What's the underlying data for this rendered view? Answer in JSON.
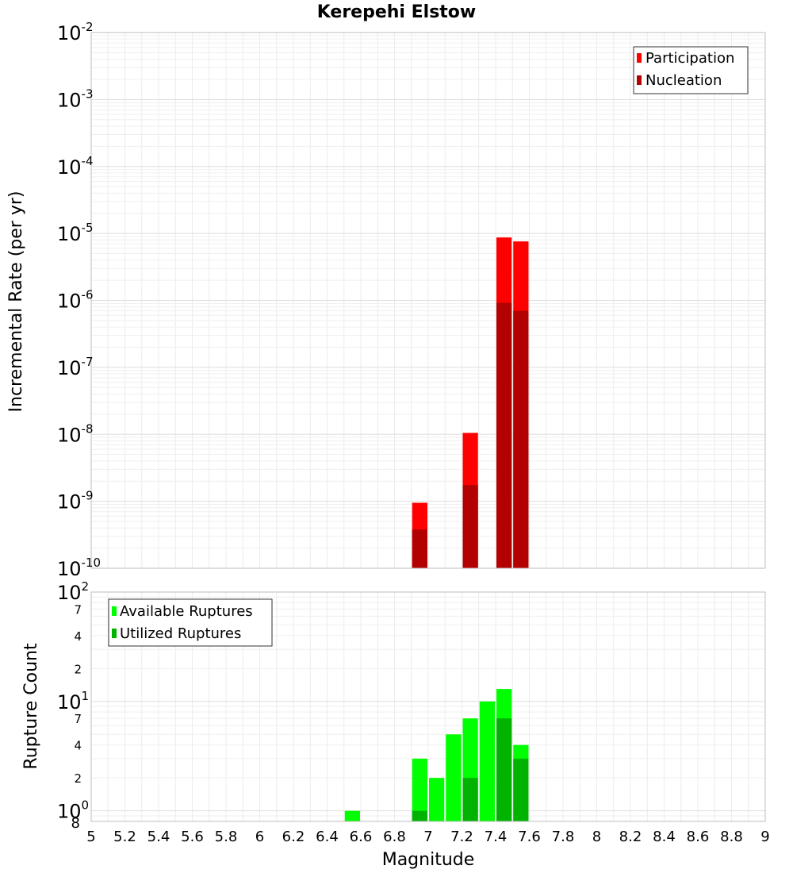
{
  "chart_data": [
    {
      "type": "bar",
      "title": "Kerepehi Elstow",
      "xlabel": "Magnitude",
      "ylabel": "Incremental Rate (per yr)",
      "ylog": true,
      "ylim": [
        1e-10,
        0.01
      ],
      "xlim": [
        5,
        9
      ],
      "y_ticks": [
        {
          "base": "10",
          "exp": "-10",
          "value": 1e-10
        },
        {
          "base": "10",
          "exp": "-9",
          "value": 1e-09
        },
        {
          "base": "10",
          "exp": "-8",
          "value": 1e-08
        },
        {
          "base": "10",
          "exp": "-7",
          "value": 1e-07
        },
        {
          "base": "10",
          "exp": "-6",
          "value": 1e-06
        },
        {
          "base": "10",
          "exp": "-5",
          "value": 1e-05
        },
        {
          "base": "10",
          "exp": "-4",
          "value": 0.0001
        },
        {
          "base": "10",
          "exp": "-3",
          "value": 0.001
        },
        {
          "base": "10",
          "exp": "-2",
          "value": 0.01
        }
      ],
      "bin_width": 0.1,
      "x": [
        6.95,
        7.25,
        7.45,
        7.55
      ],
      "series": [
        {
          "name": "Participation",
          "color": "#ff0000",
          "values": [
            9.5e-10,
            1.05e-08,
            8.7e-06,
            7.6e-06
          ]
        },
        {
          "name": "Nucleation",
          "color": "#b30000",
          "values": [
            3.8e-10,
            1.75e-09,
            9.2e-07,
            7e-07
          ]
        }
      ],
      "legend": {
        "position": "top-right"
      },
      "grid": true
    },
    {
      "type": "bar",
      "xlabel": "Magnitude",
      "ylabel": "Rupture Count",
      "ylog": true,
      "ylim": [
        0.8,
        100
      ],
      "xlim": [
        5,
        9
      ],
      "x_ticks": [
        "5",
        "5.2",
        "5.4",
        "5.6",
        "5.8",
        "6",
        "6.2",
        "6.4",
        "6.6",
        "6.8",
        "7",
        "7.2",
        "7.4",
        "7.6",
        "7.8",
        "8",
        "8.2",
        "8.4",
        "8.6",
        "8.8",
        "9"
      ],
      "y_major_ticks": [
        {
          "base": "10",
          "exp": "0",
          "value": 1
        },
        {
          "base": "10",
          "exp": "1",
          "value": 10
        },
        {
          "base": "10",
          "exp": "2",
          "value": 100
        }
      ],
      "y_minor_ticks": [
        {
          "label": "8",
          "value": 0.8
        },
        {
          "label": "2",
          "value": 2
        },
        {
          "label": "4",
          "value": 4
        },
        {
          "label": "7",
          "value": 7
        },
        {
          "label": "2",
          "value": 20
        },
        {
          "label": "4",
          "value": 40
        },
        {
          "label": "7",
          "value": 70
        }
      ],
      "bin_width": 0.1,
      "x": [
        6.55,
        6.95,
        7.05,
        7.15,
        7.25,
        7.35,
        7.45,
        7.55
      ],
      "series": [
        {
          "name": "Available Ruptures",
          "color": "#00ff00",
          "values": [
            1,
            3,
            2,
            5,
            7,
            10,
            13,
            4
          ]
        },
        {
          "name": "Utilized Ruptures",
          "color": "#00b300",
          "values": [
            0,
            1,
            0,
            0,
            2,
            0,
            7,
            3
          ]
        }
      ],
      "legend": {
        "position": "top-left"
      },
      "grid": true
    }
  ]
}
